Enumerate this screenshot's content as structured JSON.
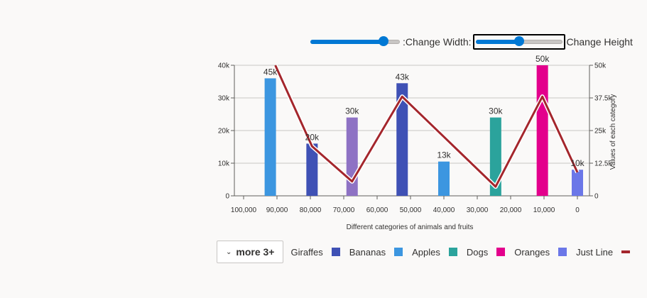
{
  "controls": {
    "width_label": ":Change Width:",
    "height_label": "Change Height",
    "width_value": 0.82,
    "height_value": 0.5
  },
  "legend": {
    "more_label": "more 3+"
  },
  "chart_data": {
    "type": "bar",
    "xlabel": "Different categories of animals and fruits",
    "ylabel_secondary": "Values of each category",
    "x_ticks": [
      "100,000",
      "90,000",
      "80,000",
      "70,000",
      "60,000",
      "50,000",
      "40,000",
      "30,000",
      "20,000",
      "10,000",
      "0"
    ],
    "xlim": [
      100000,
      0
    ],
    "y_ticks": [
      "0",
      "10k",
      "20k",
      "30k",
      "40k"
    ],
    "ylim": [
      0,
      40000
    ],
    "y2_ticks": [
      "0",
      "12.5k",
      "25k",
      "37.5k",
      "50k"
    ],
    "y2lim": [
      0,
      50000
    ],
    "series": [
      {
        "name": "Giraffes",
        "color": "#3f51b5"
      },
      {
        "name": "Bananas",
        "color": "#3c96e0"
      },
      {
        "name": "Apples",
        "color": "#2ba39c"
      },
      {
        "name": "Dogs",
        "color": "#e3008c"
      },
      {
        "name": "Oranges",
        "color": "#6b77e8"
      },
      {
        "name": "Just Line",
        "color": "#a4262c"
      }
    ],
    "bars": [
      {
        "x": 92000,
        "value": 36000,
        "label": "45k",
        "color": "#3c96e0"
      },
      {
        "x": 79500,
        "value": 16000,
        "label": "20k",
        "color": "#3f51b5"
      },
      {
        "x": 67500,
        "value": 24000,
        "label": "30k",
        "color": "#8e72c4"
      },
      {
        "x": 52500,
        "value": 34500,
        "label": "43k",
        "color": "#3f51b5"
      },
      {
        "x": 40000,
        "value": 10500,
        "label": "13k",
        "color": "#3c96e0"
      },
      {
        "x": 24500,
        "value": 24000,
        "label": "30k",
        "color": "#2ba39c"
      },
      {
        "x": 10500,
        "value": 40000,
        "label": "50k",
        "color": "#e3008c"
      },
      {
        "x": 0,
        "value": 8000,
        "label": "10k",
        "color": "#6b77e8"
      }
    ],
    "line": {
      "name": "Just Line",
      "color": "#a4262c",
      "points": [
        [
          90500,
          50000
        ],
        [
          79500,
          19000
        ],
        [
          67500,
          5500
        ],
        [
          52500,
          38000
        ],
        [
          24500,
          3500
        ],
        [
          10500,
          38000
        ],
        [
          0,
          9000
        ]
      ]
    }
  }
}
